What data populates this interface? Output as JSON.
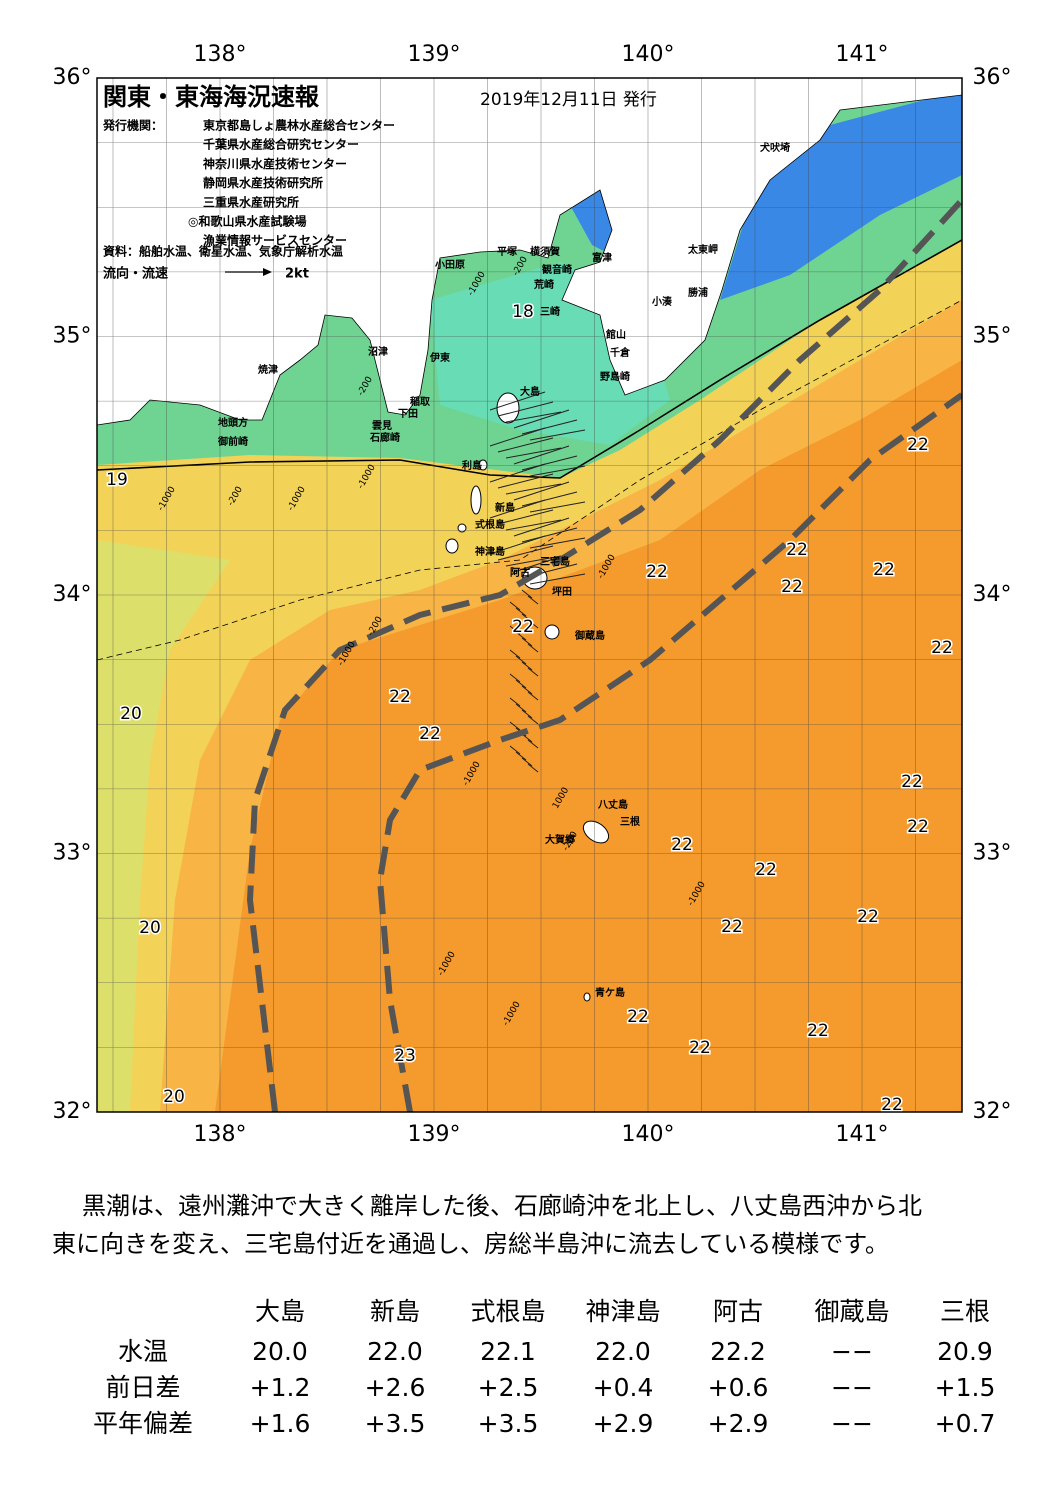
{
  "map": {
    "title": "関東・東海海況速報",
    "date": "2019年12月11日 発行",
    "issuer_label": "発行機関：",
    "issuers": [
      "東京都島しょ農林水産総合センター",
      "千葉県水産総合研究センター",
      "神奈川県水産技術センター",
      "静岡県水産技術研究所",
      "三重県水産研究所",
      "◎和歌山県水産試験場",
      "漁業情報サービスセンター"
    ],
    "source": "資料：船舶水温、衛星水温、気象庁解析水温",
    "legend_label": "流向・流速",
    "legend_scale": "2kt",
    "lon_labels": [
      "138°",
      "139°",
      "140°",
      "141°"
    ],
    "lat_labels": [
      "36°",
      "35°",
      "34°",
      "33°",
      "32°"
    ],
    "place_names": [
      "犬吠埼",
      "太東岬",
      "勝浦",
      "小湊",
      "富津",
      "横須賀",
      "平塚",
      "小田原",
      "観音崎",
      "荒崎",
      "三崎",
      "館山",
      "千倉",
      "野島崎",
      "大島",
      "稲取",
      "下田",
      "雲見",
      "石廊崎",
      "沼津",
      "伊東",
      "焼津",
      "地頭方",
      "御前崎",
      "利島",
      "新島",
      "式根島",
      "神津島",
      "三宅島",
      "阿古",
      "坪田",
      "御蔵島",
      "八丈島",
      "三根",
      "大賀郷",
      "青ケ島"
    ],
    "temperature_labels": [
      "18",
      "19",
      "20",
      "20",
      "20",
      "22",
      "22",
      "22",
      "22",
      "22",
      "22",
      "22",
      "22",
      "22",
      "22",
      "22",
      "22",
      "22",
      "22",
      "22",
      "22",
      "22",
      "22",
      "22",
      "23"
    ],
    "contour_labels": [
      "-200",
      "-1000",
      "-200",
      "-1000",
      "-1000",
      "-200",
      "-200",
      "-1000",
      "-1000",
      "-1000",
      "1000",
      "-200",
      "-1000",
      "-1000",
      "-1000",
      "-1000"
    ]
  },
  "description": [
    "黒潮は、遠州灘沖で大きく離岸した後、石廊崎沖を北上し、八丈島西沖から北",
    "東に向きを変え、三宅島付近を通過し、房総半島沖に流去している模様です。"
  ],
  "table": {
    "header": [
      "大島",
      "新島",
      "式根島",
      "神津島",
      "阿古",
      "御蔵島",
      "三根"
    ],
    "rows": [
      [
        "水温",
        "20.0",
        "22.0",
        "22.1",
        "22.0",
        "22.2",
        "−−",
        "20.9"
      ],
      [
        "前日差",
        "+1.2",
        "+2.6",
        "+2.5",
        "+0.4",
        "+0.6",
        "−−",
        "+1.5"
      ],
      [
        "平年偏差",
        "+1.6",
        "+3.5",
        "+3.5",
        "+2.9",
        "+2.9",
        "−−",
        "+0.7"
      ]
    ]
  }
}
